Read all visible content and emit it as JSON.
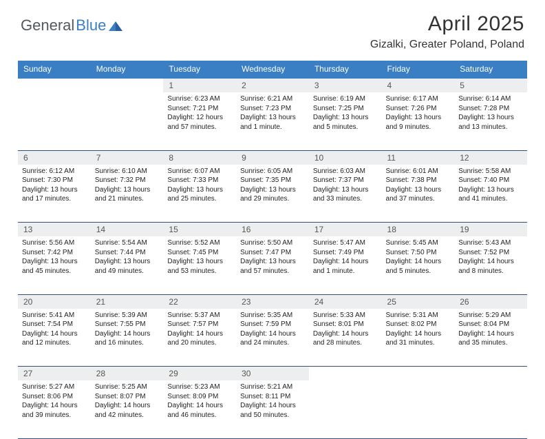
{
  "logo": {
    "part1": "General",
    "part2": "Blue"
  },
  "title": "April 2025",
  "location": "Gizalki, Greater Poland, Poland",
  "colors": {
    "header_bg": "#3a7fc4",
    "header_text": "#ffffff",
    "daynum_bg": "#eceeef",
    "border": "#2f4f7a",
    "logo_gray": "#54595e",
    "logo_blue": "#3a7fc4"
  },
  "weekdays": [
    "Sunday",
    "Monday",
    "Tuesday",
    "Wednesday",
    "Thursday",
    "Friday",
    "Saturday"
  ],
  "weeks": [
    [
      null,
      null,
      {
        "n": 1,
        "sr": "6:23 AM",
        "ss": "7:21 PM",
        "dl": "12 hours and 57 minutes."
      },
      {
        "n": 2,
        "sr": "6:21 AM",
        "ss": "7:23 PM",
        "dl": "13 hours and 1 minute."
      },
      {
        "n": 3,
        "sr": "6:19 AM",
        "ss": "7:25 PM",
        "dl": "13 hours and 5 minutes."
      },
      {
        "n": 4,
        "sr": "6:17 AM",
        "ss": "7:26 PM",
        "dl": "13 hours and 9 minutes."
      },
      {
        "n": 5,
        "sr": "6:14 AM",
        "ss": "7:28 PM",
        "dl": "13 hours and 13 minutes."
      }
    ],
    [
      {
        "n": 6,
        "sr": "6:12 AM",
        "ss": "7:30 PM",
        "dl": "13 hours and 17 minutes."
      },
      {
        "n": 7,
        "sr": "6:10 AM",
        "ss": "7:32 PM",
        "dl": "13 hours and 21 minutes."
      },
      {
        "n": 8,
        "sr": "6:07 AM",
        "ss": "7:33 PM",
        "dl": "13 hours and 25 minutes."
      },
      {
        "n": 9,
        "sr": "6:05 AM",
        "ss": "7:35 PM",
        "dl": "13 hours and 29 minutes."
      },
      {
        "n": 10,
        "sr": "6:03 AM",
        "ss": "7:37 PM",
        "dl": "13 hours and 33 minutes."
      },
      {
        "n": 11,
        "sr": "6:01 AM",
        "ss": "7:38 PM",
        "dl": "13 hours and 37 minutes."
      },
      {
        "n": 12,
        "sr": "5:58 AM",
        "ss": "7:40 PM",
        "dl": "13 hours and 41 minutes."
      }
    ],
    [
      {
        "n": 13,
        "sr": "5:56 AM",
        "ss": "7:42 PM",
        "dl": "13 hours and 45 minutes."
      },
      {
        "n": 14,
        "sr": "5:54 AM",
        "ss": "7:44 PM",
        "dl": "13 hours and 49 minutes."
      },
      {
        "n": 15,
        "sr": "5:52 AM",
        "ss": "7:45 PM",
        "dl": "13 hours and 53 minutes."
      },
      {
        "n": 16,
        "sr": "5:50 AM",
        "ss": "7:47 PM",
        "dl": "13 hours and 57 minutes."
      },
      {
        "n": 17,
        "sr": "5:47 AM",
        "ss": "7:49 PM",
        "dl": "14 hours and 1 minute."
      },
      {
        "n": 18,
        "sr": "5:45 AM",
        "ss": "7:50 PM",
        "dl": "14 hours and 5 minutes."
      },
      {
        "n": 19,
        "sr": "5:43 AM",
        "ss": "7:52 PM",
        "dl": "14 hours and 8 minutes."
      }
    ],
    [
      {
        "n": 20,
        "sr": "5:41 AM",
        "ss": "7:54 PM",
        "dl": "14 hours and 12 minutes."
      },
      {
        "n": 21,
        "sr": "5:39 AM",
        "ss": "7:55 PM",
        "dl": "14 hours and 16 minutes."
      },
      {
        "n": 22,
        "sr": "5:37 AM",
        "ss": "7:57 PM",
        "dl": "14 hours and 20 minutes."
      },
      {
        "n": 23,
        "sr": "5:35 AM",
        "ss": "7:59 PM",
        "dl": "14 hours and 24 minutes."
      },
      {
        "n": 24,
        "sr": "5:33 AM",
        "ss": "8:01 PM",
        "dl": "14 hours and 28 minutes."
      },
      {
        "n": 25,
        "sr": "5:31 AM",
        "ss": "8:02 PM",
        "dl": "14 hours and 31 minutes."
      },
      {
        "n": 26,
        "sr": "5:29 AM",
        "ss": "8:04 PM",
        "dl": "14 hours and 35 minutes."
      }
    ],
    [
      {
        "n": 27,
        "sr": "5:27 AM",
        "ss": "8:06 PM",
        "dl": "14 hours and 39 minutes."
      },
      {
        "n": 28,
        "sr": "5:25 AM",
        "ss": "8:07 PM",
        "dl": "14 hours and 42 minutes."
      },
      {
        "n": 29,
        "sr": "5:23 AM",
        "ss": "8:09 PM",
        "dl": "14 hours and 46 minutes."
      },
      {
        "n": 30,
        "sr": "5:21 AM",
        "ss": "8:11 PM",
        "dl": "14 hours and 50 minutes."
      },
      null,
      null,
      null
    ]
  ],
  "labels": {
    "sunrise": "Sunrise:",
    "sunset": "Sunset:",
    "daylight": "Daylight:"
  }
}
